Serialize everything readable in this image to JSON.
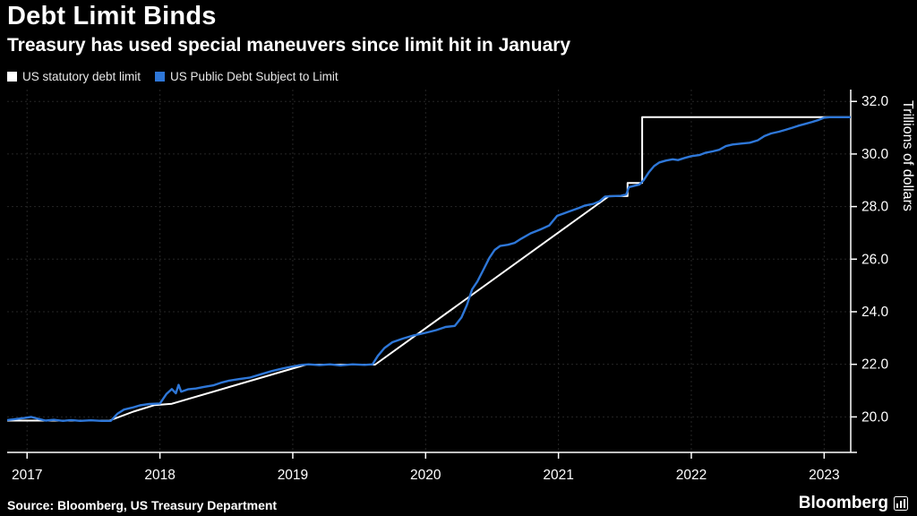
{
  "header": {
    "title": "Debt Limit Binds",
    "subtitle": "Treasury has used special maneuvers since limit hit in January"
  },
  "legend": [
    {
      "label": "US statutory debt limit",
      "color": "#ffffff"
    },
    {
      "label": "US Public Debt Subject to Limit",
      "color": "#2e77d8"
    }
  ],
  "footer": {
    "source": "Source: Bloomberg, US Treasury Department",
    "brand": "Bloomberg"
  },
  "chart_data": {
    "type": "line",
    "title": "Debt Limit Binds",
    "subtitle": "Treasury has used special maneuvers since limit hit in January",
    "xlabel": "",
    "ylabel": "Trillions of dollars",
    "xlim": [
      2016.85,
      2023.2
    ],
    "ylim": [
      18.65,
      32.45
    ],
    "x_ticks": [
      2017,
      2018,
      2019,
      2020,
      2021,
      2022,
      2023
    ],
    "x_tick_labels": [
      "2017",
      "2018",
      "2019",
      "2020",
      "2021",
      "2022",
      "2023"
    ],
    "y_ticks": [
      20,
      22,
      24,
      26,
      28,
      30,
      32
    ],
    "y_tick_labels": [
      "20.0",
      "22.0",
      "24.0",
      "26.0",
      "28.0",
      "30.0",
      "32.0"
    ],
    "grid": true,
    "legend_position": "top-left",
    "series": [
      {
        "name": "US statutory debt limit",
        "color": "#ffffff",
        "width": 2,
        "points": [
          [
            2016.85,
            19.86
          ],
          [
            2017.62,
            19.86
          ],
          [
            2017.8,
            20.2
          ],
          [
            2017.96,
            20.45
          ],
          [
            2018.09,
            20.5
          ],
          [
            2019.1,
            21.99
          ],
          [
            2019.62,
            21.99
          ],
          [
            2021.38,
            28.4
          ],
          [
            2021.52,
            28.4
          ],
          [
            2021.52,
            28.9
          ],
          [
            2021.63,
            28.9
          ],
          [
            2021.63,
            31.4
          ],
          [
            2023.2,
            31.4
          ]
        ]
      },
      {
        "name": "US Public Debt Subject to Limit",
        "color": "#2e77d8",
        "width": 2.4,
        "points": [
          [
            2016.85,
            19.88
          ],
          [
            2016.92,
            19.92
          ],
          [
            2016.98,
            19.96
          ],
          [
            2017.03,
            20.0
          ],
          [
            2017.08,
            19.93
          ],
          [
            2017.14,
            19.86
          ],
          [
            2017.2,
            19.89
          ],
          [
            2017.27,
            19.85
          ],
          [
            2017.33,
            19.88
          ],
          [
            2017.4,
            19.85
          ],
          [
            2017.48,
            19.87
          ],
          [
            2017.56,
            19.85
          ],
          [
            2017.63,
            19.85
          ],
          [
            2017.68,
            20.12
          ],
          [
            2017.73,
            20.28
          ],
          [
            2017.79,
            20.35
          ],
          [
            2017.85,
            20.44
          ],
          [
            2017.92,
            20.49
          ],
          [
            2018.0,
            20.51
          ],
          [
            2018.05,
            20.88
          ],
          [
            2018.09,
            21.06
          ],
          [
            2018.12,
            20.9
          ],
          [
            2018.14,
            21.22
          ],
          [
            2018.16,
            20.96
          ],
          [
            2018.21,
            21.05
          ],
          [
            2018.27,
            21.08
          ],
          [
            2018.33,
            21.14
          ],
          [
            2018.4,
            21.2
          ],
          [
            2018.46,
            21.3
          ],
          [
            2018.52,
            21.38
          ],
          [
            2018.6,
            21.44
          ],
          [
            2018.68,
            21.5
          ],
          [
            2018.76,
            21.62
          ],
          [
            2018.84,
            21.74
          ],
          [
            2018.92,
            21.84
          ],
          [
            2019.0,
            21.92
          ],
          [
            2019.07,
            21.98
          ],
          [
            2019.12,
            22.0
          ],
          [
            2019.2,
            21.97
          ],
          [
            2019.28,
            22.0
          ],
          [
            2019.36,
            21.96
          ],
          [
            2019.45,
            22.0
          ],
          [
            2019.54,
            21.98
          ],
          [
            2019.6,
            22.0
          ],
          [
            2019.64,
            22.32
          ],
          [
            2019.69,
            22.62
          ],
          [
            2019.75,
            22.84
          ],
          [
            2019.83,
            22.98
          ],
          [
            2019.91,
            23.1
          ],
          [
            2020.0,
            23.2
          ],
          [
            2020.08,
            23.3
          ],
          [
            2020.15,
            23.42
          ],
          [
            2020.22,
            23.46
          ],
          [
            2020.27,
            23.78
          ],
          [
            2020.31,
            24.25
          ],
          [
            2020.35,
            24.85
          ],
          [
            2020.39,
            25.15
          ],
          [
            2020.43,
            25.55
          ],
          [
            2020.48,
            26.05
          ],
          [
            2020.52,
            26.35
          ],
          [
            2020.56,
            26.5
          ],
          [
            2020.62,
            26.55
          ],
          [
            2020.67,
            26.62
          ],
          [
            2020.72,
            26.78
          ],
          [
            2020.79,
            26.98
          ],
          [
            2020.86,
            27.12
          ],
          [
            2020.93,
            27.28
          ],
          [
            2020.99,
            27.65
          ],
          [
            2021.04,
            27.74
          ],
          [
            2021.1,
            27.85
          ],
          [
            2021.15,
            27.94
          ],
          [
            2021.2,
            28.04
          ],
          [
            2021.26,
            28.1
          ],
          [
            2021.31,
            28.2
          ],
          [
            2021.35,
            28.38
          ],
          [
            2021.41,
            28.4
          ],
          [
            2021.47,
            28.41
          ],
          [
            2021.51,
            28.46
          ],
          [
            2021.53,
            28.74
          ],
          [
            2021.57,
            28.79
          ],
          [
            2021.61,
            28.84
          ],
          [
            2021.64,
            29.0
          ],
          [
            2021.68,
            29.3
          ],
          [
            2021.72,
            29.54
          ],
          [
            2021.76,
            29.68
          ],
          [
            2021.81,
            29.75
          ],
          [
            2021.86,
            29.8
          ],
          [
            2021.9,
            29.77
          ],
          [
            2021.95,
            29.85
          ],
          [
            2022.0,
            29.92
          ],
          [
            2022.06,
            29.96
          ],
          [
            2022.11,
            30.05
          ],
          [
            2022.16,
            30.1
          ],
          [
            2022.21,
            30.16
          ],
          [
            2022.26,
            30.3
          ],
          [
            2022.31,
            30.36
          ],
          [
            2022.38,
            30.4
          ],
          [
            2022.44,
            30.43
          ],
          [
            2022.5,
            30.52
          ],
          [
            2022.55,
            30.68
          ],
          [
            2022.6,
            30.78
          ],
          [
            2022.66,
            30.85
          ],
          [
            2022.71,
            30.92
          ],
          [
            2022.76,
            31.0
          ],
          [
            2022.81,
            31.08
          ],
          [
            2022.86,
            31.15
          ],
          [
            2022.91,
            31.22
          ],
          [
            2022.96,
            31.3
          ],
          [
            2023.0,
            31.38
          ],
          [
            2023.04,
            31.4
          ],
          [
            2023.2,
            31.4
          ]
        ]
      }
    ]
  }
}
